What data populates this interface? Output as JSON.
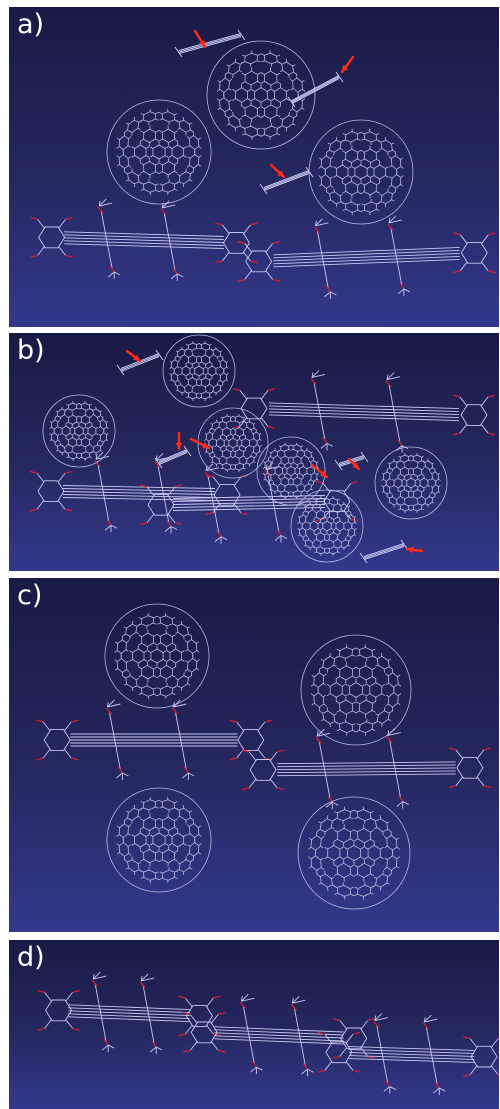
{
  "panels": [
    {
      "id": "a",
      "label": "a)"
    },
    {
      "id": "b",
      "label": "b)"
    },
    {
      "id": "c",
      "label": "c)"
    },
    {
      "id": "d",
      "label": "d)"
    }
  ],
  "colors": {
    "background_top": "#191a45",
    "background_bottom": "#34388c",
    "wireframe": "#c8c8f0",
    "oxygen": "#c81e3c",
    "arrow": "#ff2a1a",
    "label": "#ffffff"
  }
}
